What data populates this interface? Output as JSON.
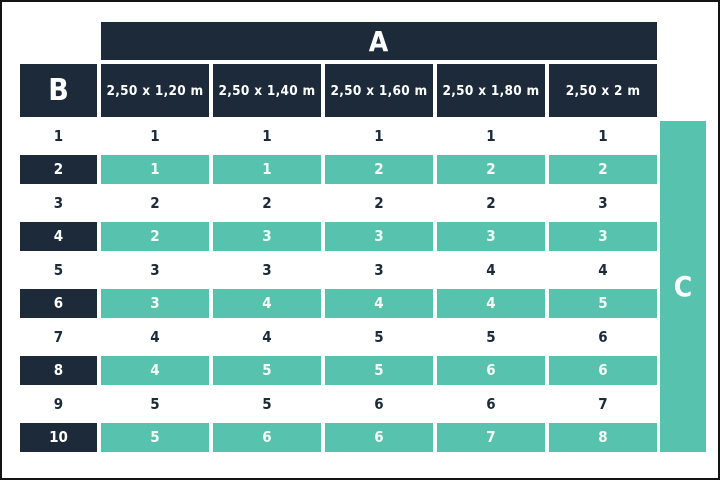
{
  "colors": {
    "navy": "#1c2a3a",
    "teal": "#57c3ae",
    "background": "#ffffff"
  },
  "table": {
    "top_label": "A",
    "corner_label": "B",
    "right_label": "C",
    "columns": [
      "2,50 x 1,20 m",
      "2,50 x 1,40 m",
      "2,50 x 1,60 m",
      "2,50 x 1,80 m",
      "2,50 x 2 m"
    ],
    "rows": [
      {
        "label": "1",
        "highlight": false,
        "values": [
          "1",
          "1",
          "1",
          "1",
          "1"
        ]
      },
      {
        "label": "2",
        "highlight": true,
        "values": [
          "1",
          "1",
          "2",
          "2",
          "2"
        ]
      },
      {
        "label": "3",
        "highlight": false,
        "values": [
          "2",
          "2",
          "2",
          "2",
          "3"
        ]
      },
      {
        "label": "4",
        "highlight": true,
        "values": [
          "2",
          "3",
          "3",
          "3",
          "3"
        ]
      },
      {
        "label": "5",
        "highlight": false,
        "values": [
          "3",
          "3",
          "3",
          "4",
          "4"
        ]
      },
      {
        "label": "6",
        "highlight": true,
        "values": [
          "3",
          "4",
          "4",
          "4",
          "5"
        ]
      },
      {
        "label": "7",
        "highlight": false,
        "values": [
          "4",
          "4",
          "5",
          "5",
          "6"
        ]
      },
      {
        "label": "8",
        "highlight": true,
        "values": [
          "4",
          "5",
          "5",
          "6",
          "6"
        ]
      },
      {
        "label": "9",
        "highlight": false,
        "values": [
          "5",
          "5",
          "6",
          "6",
          "7"
        ]
      },
      {
        "label": "10",
        "highlight": true,
        "values": [
          "5",
          "6",
          "6",
          "7",
          "8"
        ]
      }
    ]
  },
  "chart_data": {
    "type": "table",
    "title": "",
    "column_group_label": "A",
    "row_group_label": "B",
    "right_side_label": "C",
    "columns": [
      "2,50 x 1,20 m",
      "2,50 x 1,40 m",
      "2,50 x 1,60 m",
      "2,50 x 1,80 m",
      "2,50 x 2 m"
    ],
    "row_labels": [
      "1",
      "2",
      "3",
      "4",
      "5",
      "6",
      "7",
      "8",
      "9",
      "10"
    ],
    "values": [
      [
        1,
        1,
        1,
        1,
        1
      ],
      [
        1,
        1,
        2,
        2,
        2
      ],
      [
        2,
        2,
        2,
        2,
        3
      ],
      [
        2,
        3,
        3,
        3,
        3
      ],
      [
        3,
        3,
        3,
        4,
        4
      ],
      [
        3,
        4,
        4,
        4,
        5
      ],
      [
        4,
        4,
        5,
        5,
        6
      ],
      [
        4,
        5,
        5,
        6,
        6
      ],
      [
        5,
        5,
        6,
        6,
        7
      ],
      [
        5,
        6,
        6,
        7,
        8
      ]
    ],
    "highlighted_rows": [
      2,
      4,
      6,
      8,
      10
    ]
  }
}
